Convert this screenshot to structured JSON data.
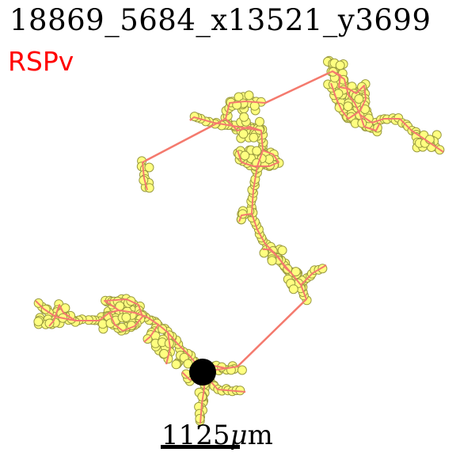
{
  "title": "18869_5684_x13521_y3699",
  "region_label": "RSPv",
  "scale_bar": {
    "value": "1125",
    "unit_symbol": "μ",
    "unit_suffix": "m"
  },
  "colors": {
    "region_label": "#ff0000",
    "axon_line": "#f47a6e",
    "node_fill": "#ffff80",
    "node_stroke": "#9a9a40",
    "soma": "#000000",
    "scale_bar": "#000000"
  },
  "diagram": {
    "soma_name": "soma",
    "branches": [
      "axon-branch"
    ]
  }
}
